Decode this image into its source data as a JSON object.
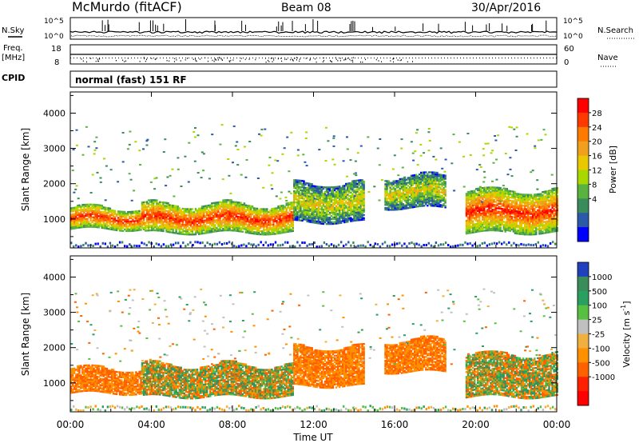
{
  "header": {
    "station": "McMurdo (fitACF)",
    "beam": "Beam 08",
    "date": "30/Apr/2016"
  },
  "panels": {
    "nsky_label": "N.Sky",
    "nsearch_label": "N.Search",
    "freq_label_line1": "Freq.",
    "freq_label_line2": "[MHz]",
    "nave_label": "Nave",
    "cpid_label": "CPID",
    "cpid_value": "normal (fast) 151 RF",
    "noise_ticks_left": [
      "10^5",
      "10^0"
    ],
    "noise_ticks_right": [
      "10^5",
      "10^0"
    ],
    "freq_ticks": [
      "18",
      "8"
    ],
    "nave_ticks": [
      "60",
      "0"
    ]
  },
  "chart_data": [
    {
      "type": "heatmap",
      "title": "",
      "xlabel": "Time UT",
      "ylabel": "Slant Range [km]",
      "x_ticks": [
        "00:00",
        "04:00",
        "08:00",
        "12:00",
        "16:00",
        "20:00",
        "00:00"
      ],
      "x_range_hours": [
        0,
        24
      ],
      "ylim": [
        180,
        4600
      ],
      "y_ticks": [
        1000,
        2000,
        3000,
        4000
      ],
      "colorbar": {
        "label": "Power [dB]",
        "ticks": [
          "28",
          "24",
          "20",
          "16",
          "12",
          "8",
          "4"
        ],
        "colors": [
          "#ff0000",
          "#ff3a00",
          "#ff7a00",
          "#f0a01e",
          "#e8c800",
          "#a8d800",
          "#5ab33e",
          "#3a8c5a",
          "#2a5aa8",
          "#0000ff"
        ]
      },
      "echo_regions": [
        {
          "t_start": 0.0,
          "t_end": 3.5,
          "r_low": 700,
          "r_high": 1300,
          "level": "high"
        },
        {
          "t_start": 3.5,
          "t_end": 11.0,
          "r_low": 600,
          "r_high": 1400,
          "level": "high"
        },
        {
          "t_start": 11.0,
          "t_end": 14.5,
          "r_low": 900,
          "r_high": 2000,
          "level": "mid"
        },
        {
          "t_start": 15.5,
          "t_end": 18.5,
          "r_low": 1300,
          "r_high": 2200,
          "level": "mid"
        },
        {
          "t_start": 19.5,
          "t_end": 24.0,
          "r_low": 600,
          "r_high": 1800,
          "level": "high"
        }
      ]
    },
    {
      "type": "heatmap",
      "title": "",
      "xlabel": "Time UT",
      "ylabel": "Slant Range [km]",
      "x_ticks": [
        "00:00",
        "04:00",
        "08:00",
        "12:00",
        "16:00",
        "20:00",
        "00:00"
      ],
      "x_range_hours": [
        0,
        24
      ],
      "ylim": [
        180,
        4600
      ],
      "y_ticks": [
        1000,
        2000,
        3000,
        4000
      ],
      "colorbar": {
        "label": "Velocity [m s^-1]",
        "ticks": [
          "1000",
          "500",
          "100",
          "25",
          "-25",
          "-100",
          "-500",
          "-1000"
        ],
        "colors": [
          "#2040c0",
          "#3a8c5a",
          "#2aa060",
          "#58c040",
          "#c0c0c0",
          "#f0b040",
          "#ff9000",
          "#ff6000",
          "#ff2000",
          "#ff0000"
        ]
      },
      "echo_regions": [
        {
          "t_start": 0.0,
          "t_end": 3.5,
          "r_low": 700,
          "r_high": 1400,
          "level": "neg"
        },
        {
          "t_start": 3.5,
          "t_end": 11.0,
          "r_low": 600,
          "r_high": 1500,
          "level": "mix"
        },
        {
          "t_start": 11.0,
          "t_end": 14.5,
          "r_low": 900,
          "r_high": 2000,
          "level": "neg"
        },
        {
          "t_start": 15.5,
          "t_end": 18.5,
          "r_low": 1300,
          "r_high": 2200,
          "level": "neg"
        },
        {
          "t_start": 19.5,
          "t_end": 24.0,
          "r_low": 600,
          "r_high": 1800,
          "level": "mix"
        }
      ]
    }
  ]
}
